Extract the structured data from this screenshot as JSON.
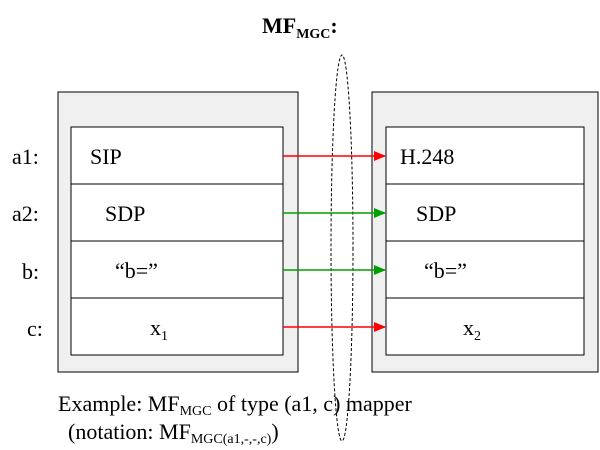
{
  "title": {
    "main": "MF",
    "sub": "MGC",
    "colon": ":"
  },
  "row_labels": [
    "a1:",
    "a2:",
    "b:",
    "c:"
  ],
  "left_cells": [
    {
      "text": "SIP",
      "sub": ""
    },
    {
      "text": "SDP",
      "sub": ""
    },
    {
      "text": "“b=”",
      "sub": ""
    },
    {
      "text": "x",
      "sub": "1"
    }
  ],
  "right_cells": [
    {
      "text": "H.248",
      "sub": ""
    },
    {
      "text": "SDP",
      "sub": ""
    },
    {
      "text": "“b=”",
      "sub": ""
    },
    {
      "text": "x",
      "sub": "2"
    }
  ],
  "arrows": [
    {
      "row": "a1",
      "kind": "translated",
      "color": "#ff0000"
    },
    {
      "row": "a2",
      "kind": "passthrough",
      "color": "#00a000"
    },
    {
      "row": "b",
      "kind": "passthrough",
      "color": "#00a000"
    },
    {
      "row": "c",
      "kind": "translated",
      "color": "#ff0000"
    }
  ],
  "caption": {
    "line1_prefix": "Example: MF",
    "line1_sub": "MGC",
    "line1_suffix": " of type (a1, c) mapper",
    "line2_prefix": "(notation: MF",
    "line2_sub": "MGC(a1,-,-,c)",
    "line2_suffix": ")"
  },
  "colors": {
    "panel_fill": "#f0f0f0",
    "cell_fill": "#ffffff",
    "line": "#000000"
  }
}
